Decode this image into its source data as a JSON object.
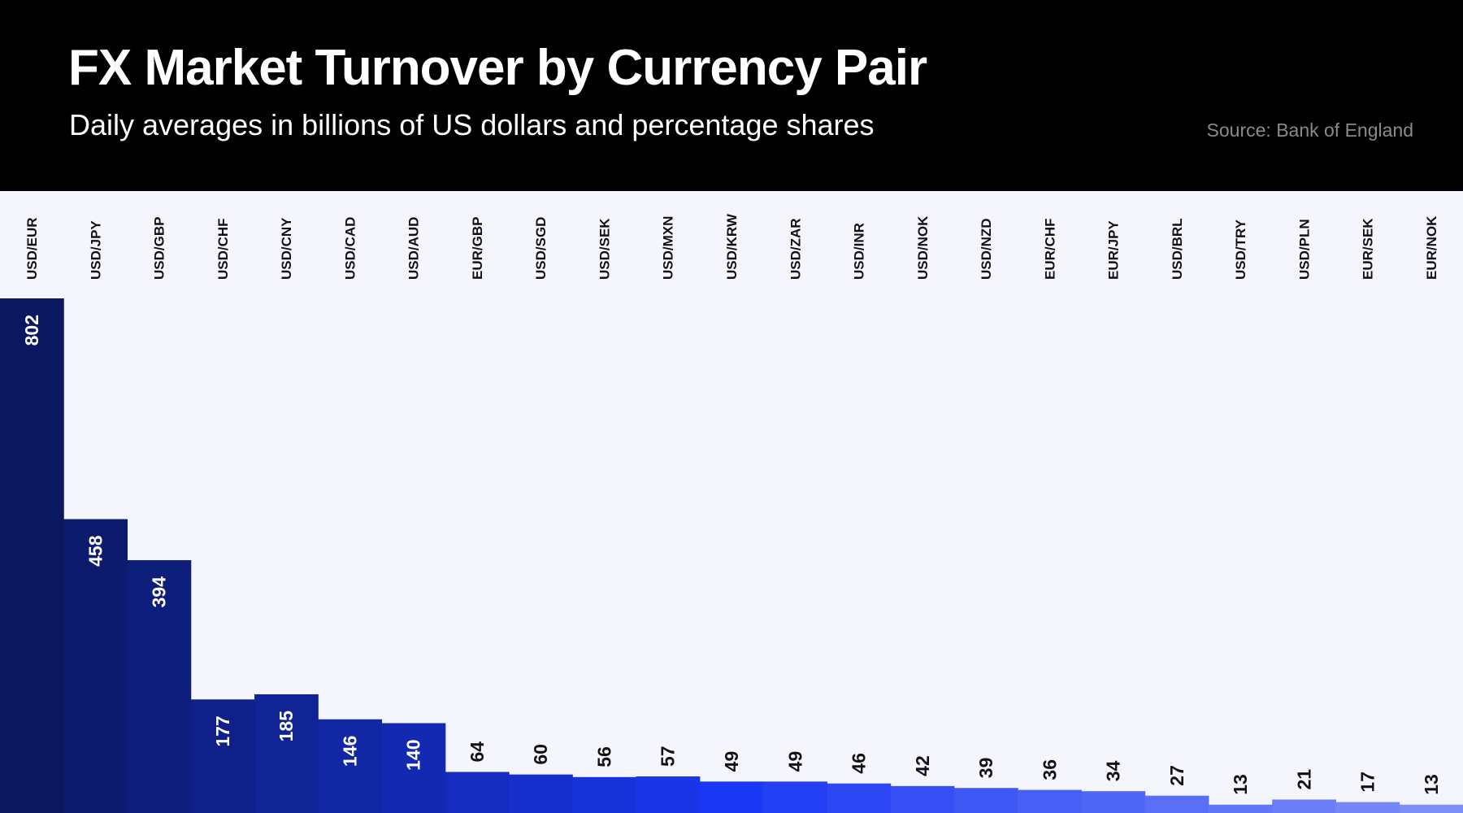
{
  "header": {
    "title": "FX Market Turnover by Currency Pair",
    "subtitle": "Daily averages in billions of US dollars and percentage shares",
    "source": "Source: Bank of England"
  },
  "chart_data": {
    "type": "bar",
    "title": "FX Market Turnover by Currency Pair",
    "subtitle": "Daily averages in billions of US dollars and percentage shares",
    "categories": [
      "USD/EUR",
      "USD/JPY",
      "USD/GBP",
      "USD/CHF",
      "USD/CNY",
      "USD/CAD",
      "USD/AUD",
      "EUR/GBP",
      "USD/SGD",
      "USD/SEK",
      "USD/MXN",
      "USD/KRW",
      "USD/ZAR",
      "USD/INR",
      "USD/NOK",
      "USD/NZD",
      "EUR/CHF",
      "EUR/JPY",
      "USD/BRL",
      "USD/TRY",
      "USD/PLN",
      "EUR/SEK",
      "EUR/NOK"
    ],
    "values": [
      802,
      458,
      394,
      177,
      185,
      146,
      140,
      64,
      60,
      56,
      57,
      49,
      49,
      46,
      42,
      39,
      36,
      34,
      27,
      13,
      21,
      17,
      13
    ],
    "ylim": [
      0,
      802
    ],
    "grid": false,
    "legend": "none",
    "colors": {
      "start": "#0b1860",
      "mid": "#1a38f4",
      "end": "#7d8ef8",
      "background": "#f5f6fd",
      "header": "#000000"
    }
  }
}
